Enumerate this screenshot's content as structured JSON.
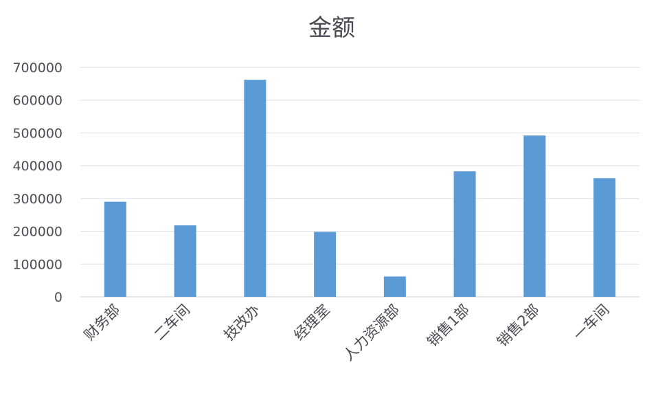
{
  "chart_data": {
    "type": "bar",
    "title": "金额",
    "xlabel": "",
    "ylabel": "",
    "categories": [
      "财务部",
      "二车间",
      "技改办",
      "经理室",
      "人力资源部",
      "销售1部",
      "销售2部",
      "一车间"
    ],
    "values": [
      290000,
      218000,
      662000,
      198000,
      62000,
      383000,
      492000,
      362000
    ],
    "ylim": [
      0,
      700000
    ],
    "yticks": [
      0,
      100000,
      200000,
      300000,
      400000,
      500000,
      600000,
      700000
    ],
    "grid": true,
    "legend": "none",
    "colors": {
      "bar": "#5b9bd5"
    }
  }
}
